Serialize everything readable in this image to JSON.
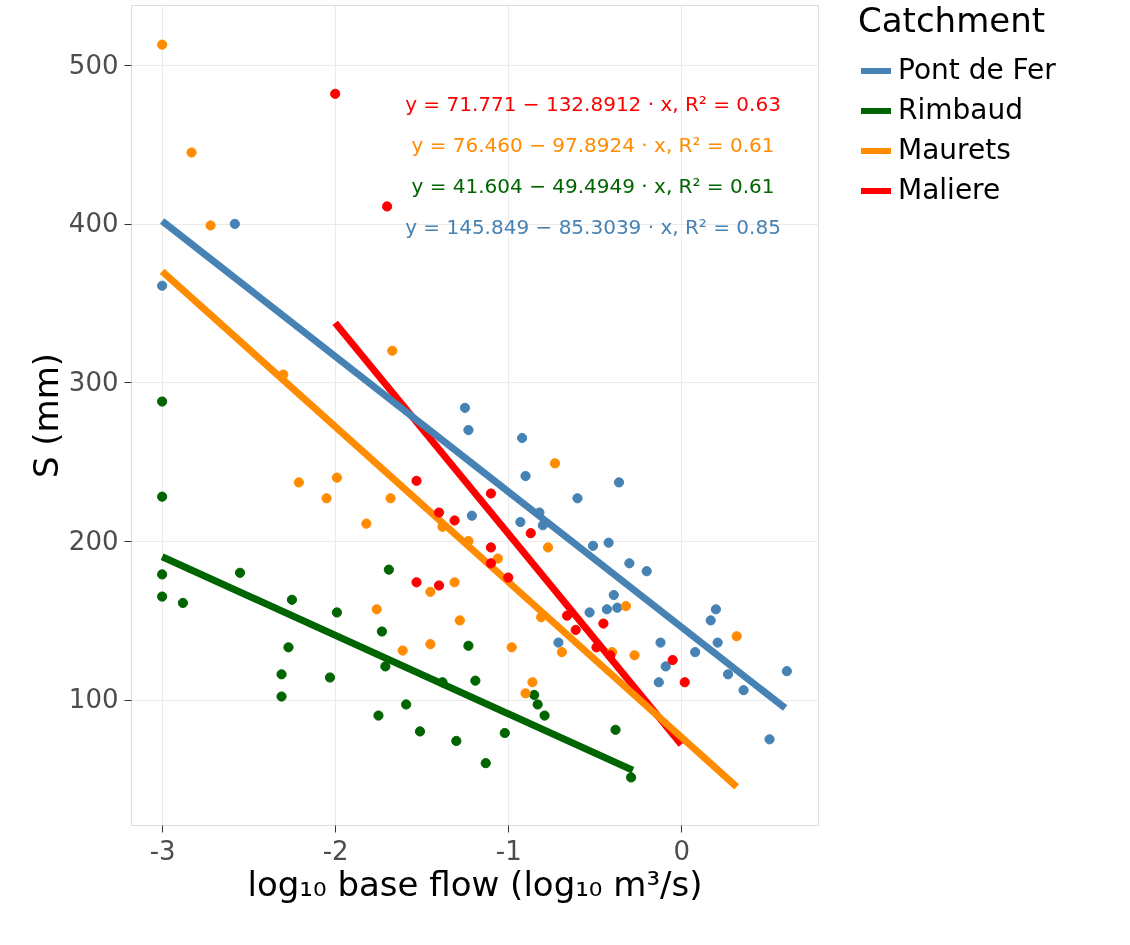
{
  "chart_data": {
    "type": "scatter",
    "xlabel": "log₁₀ base flow (log₁₀ m³/s)",
    "ylabel": "S (mm)",
    "legend_title": "Catchment",
    "legend": "right",
    "grid": true,
    "marker": "circle",
    "xlim": [
      -3.18,
      0.79
    ],
    "xticks": [
      {
        "value": -3,
        "label": "-3"
      },
      {
        "value": -2,
        "label": "-2"
      },
      {
        "value": -1,
        "label": "-1"
      },
      {
        "value": 0,
        "label": "0"
      }
    ],
    "ylim": [
      21,
      538
    ],
    "yticks": [
      100,
      200,
      300,
      400,
      500
    ],
    "annotations": [
      "y = 71.771 − 132.8912 · x,  R² = 0.63",
      "y = 76.460 − 97.8924 · x,  R² = 0.61",
      "y = 41.604 − 49.4949 · x,  R² = 0.61",
      "y = 145.849 − 85.3039 · x,  R² = 0.85"
    ],
    "series": [
      {
        "name": "Pont de Fer",
        "color": "#4682b4",
        "x": [
          -3,
          -2.58,
          -1.25,
          -1.23,
          -0.92,
          -0.9,
          -0.36,
          -0.6,
          -1.21,
          -0.82,
          -0.93,
          -0.8,
          -0.51,
          -0.42,
          -0.3,
          -0.2,
          -0.39,
          -0.43,
          -0.37,
          -0.53,
          -0.71,
          -0.12,
          -0.09,
          -0.13,
          0.08,
          0.17,
          0.2,
          0.21,
          0.27,
          0.36,
          0.61,
          0.51
        ],
        "values": [
          361,
          400,
          284,
          270,
          265,
          241,
          237,
          227,
          216,
          218,
          212,
          210,
          197,
          199,
          186,
          181,
          166,
          157,
          158,
          155,
          136,
          136,
          121,
          111,
          130,
          150,
          157,
          136,
          116,
          106,
          118,
          75
        ]
      },
      {
        "name": "Rimbaud",
        "color": "#006400",
        "x": [
          -3,
          -3,
          -3,
          -3,
          -2.88,
          -2.55,
          -2.25,
          -1.99,
          -1.69,
          -1.73,
          -2.27,
          -2.31,
          -2.31,
          -2.03,
          -1.71,
          -1.23,
          -1.19,
          -1.38,
          -1.75,
          -1.59,
          -1.51,
          -1.3,
          -1.13,
          -1.02,
          -0.85,
          -0.83,
          -0.79,
          -0.38,
          -0.29
        ],
        "values": [
          288,
          228,
          179,
          165,
          161,
          180,
          163,
          155,
          182,
          143,
          133,
          116,
          102,
          114,
          121,
          134,
          112,
          111,
          90,
          97,
          80,
          74,
          60,
          79,
          103,
          97,
          90,
          81,
          51
        ]
      },
      {
        "name": "Maurets",
        "color": "#ff8c00",
        "x": [
          -3,
          -2.83,
          -2.72,
          -2.3,
          -1.67,
          -2.21,
          -1.99,
          -2.05,
          -1.68,
          -1.82,
          -1.38,
          -1.23,
          -1.31,
          -1.45,
          -1.76,
          -1.28,
          -1.61,
          -1.45,
          -0.73,
          -0.77,
          -1.06,
          -0.81,
          -0.98,
          -0.69,
          -0.4,
          -0.27,
          -0.32,
          0.32,
          -0.86,
          -0.9
        ],
        "values": [
          513,
          445,
          399,
          305,
          320,
          237,
          240,
          227,
          227,
          211,
          209,
          200,
          174,
          168,
          157,
          150,
          131,
          135,
          249,
          196,
          189,
          152,
          133,
          130,
          130,
          128,
          159,
          140,
          111,
          104
        ]
      },
      {
        "name": "Maliere",
        "color": "#ff0000",
        "x": [
          -2,
          -1.7,
          -1.53,
          -1.4,
          -1.31,
          -1.53,
          -1.4,
          -1.1,
          -0.87,
          -1.1,
          -1.1,
          -1.0,
          -0.66,
          -0.61,
          -0.45,
          -0.49,
          -0.41,
          -0.05,
          0.02
        ],
        "values": [
          482,
          411,
          238,
          218,
          213,
          174,
          172,
          230,
          205,
          196,
          186,
          177,
          153,
          144,
          148,
          133,
          128,
          125,
          111
        ]
      },
      {
        "type": "line",
        "marker": "none",
        "color": "#ff0000",
        "x": [
          -2,
          0
        ],
        "values": [
          337.6,
          71.8
        ]
      },
      {
        "type": "line",
        "marker": "none",
        "color": "#ff8c00",
        "x": [
          -3,
          0.32
        ],
        "values": [
          370.1,
          45.1
        ]
      },
      {
        "type": "line",
        "marker": "none",
        "color": "#006400",
        "x": [
          -3,
          -0.28
        ],
        "values": [
          190.1,
          55.5
        ]
      },
      {
        "type": "line",
        "marker": "none",
        "color": "#4682b4",
        "x": [
          -3,
          0.6
        ],
        "values": [
          401.8,
          94.7
        ]
      }
    ]
  }
}
